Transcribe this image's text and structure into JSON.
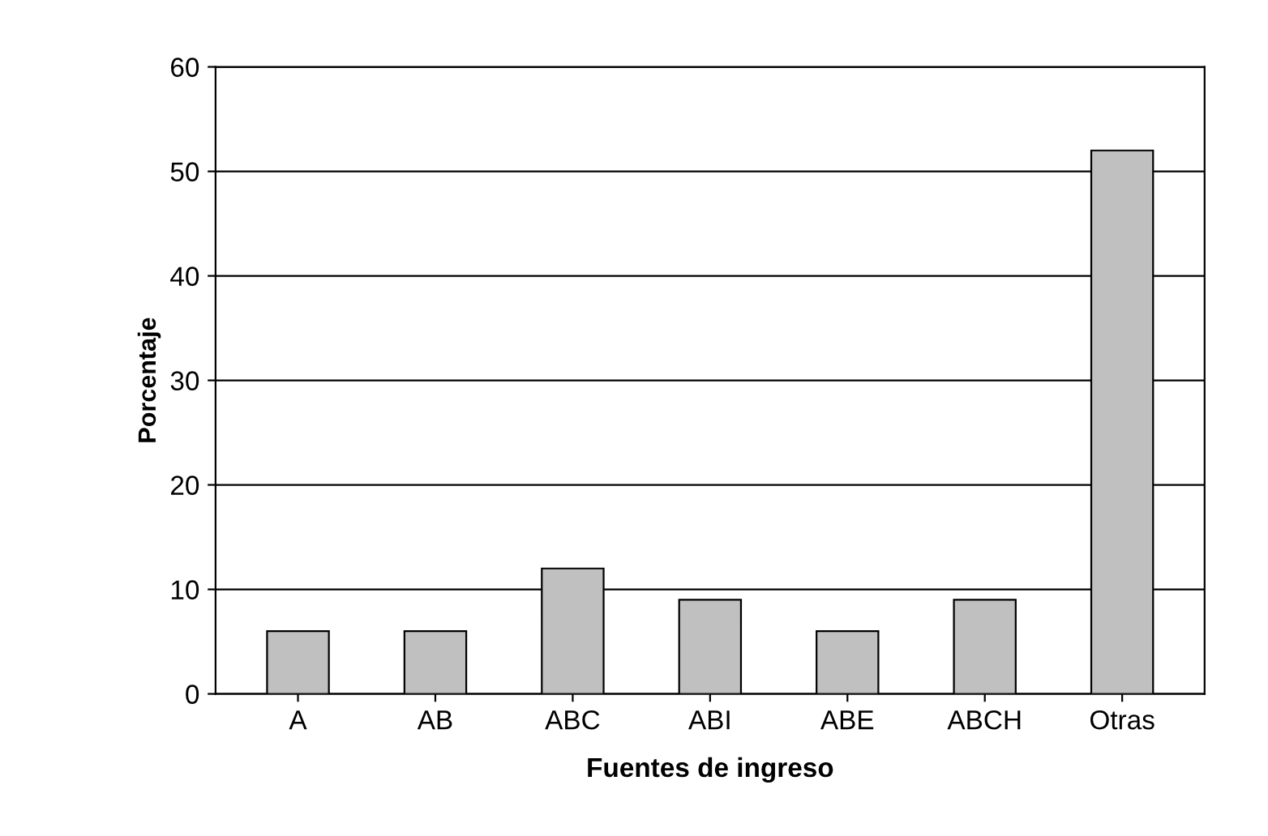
{
  "chart_data": {
    "type": "bar",
    "xlabel": "Fuentes de ingreso",
    "ylabel": "Porcentaje",
    "categories": [
      "A",
      "AB",
      "ABC",
      "ABI",
      "ABE",
      "ABCH",
      "Otras"
    ],
    "values": [
      6,
      6,
      12,
      9,
      6,
      9,
      52
    ],
    "color": "#c0c0c0",
    "ylim": [
      0,
      60
    ],
    "yticks": [
      0,
      10,
      20,
      30,
      40,
      50,
      60
    ],
    "grid": "y"
  }
}
